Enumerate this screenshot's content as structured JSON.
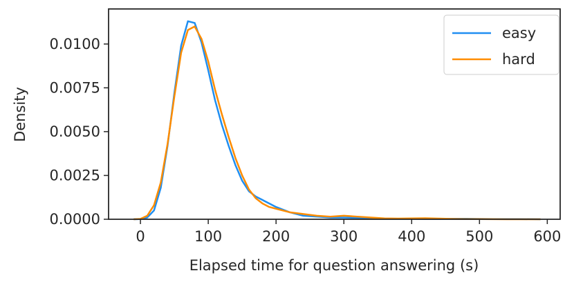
{
  "chart_data": {
    "type": "line",
    "x_label": "Elapsed time for question answering (s)",
    "y_label": "Density",
    "x": [
      -10,
      0,
      10,
      20,
      30,
      40,
      50,
      60,
      70,
      80,
      90,
      100,
      110,
      120,
      130,
      140,
      150,
      160,
      170,
      180,
      190,
      200,
      220,
      240,
      260,
      280,
      300,
      320,
      340,
      360,
      380,
      400,
      420,
      440,
      460,
      480,
      500,
      520,
      540,
      560,
      580,
      590
    ],
    "series": [
      {
        "name": "easy",
        "color": "#1f8ef1",
        "values": [
          0,
          1e-05,
          0.0001,
          0.0005,
          0.0018,
          0.0042,
          0.0072,
          0.0099,
          0.0113,
          0.0112,
          0.0101,
          0.0085,
          0.0068,
          0.0054,
          0.0042,
          0.0031,
          0.0022,
          0.0016,
          0.0013,
          0.0011,
          0.0009,
          0.0007,
          0.0004,
          0.0002,
          0.00015,
          0.0001,
          0.0001,
          8e-05,
          6e-05,
          4e-05,
          3e-05,
          3e-05,
          2e-05,
          2e-05,
          3e-05,
          3e-05,
          2e-05,
          1e-05,
          1e-05,
          1e-05,
          5e-06,
          0
        ]
      },
      {
        "name": "hard",
        "color": "#ff8c00",
        "values": [
          0,
          2e-05,
          0.0002,
          0.0008,
          0.0021,
          0.0043,
          0.007,
          0.0095,
          0.0108,
          0.011,
          0.0103,
          0.009,
          0.0074,
          0.006,
          0.0047,
          0.0035,
          0.0025,
          0.0017,
          0.0012,
          0.0009,
          0.0007,
          0.0006,
          0.0004,
          0.0003,
          0.0002,
          0.00015,
          0.0002,
          0.00015,
          0.0001,
          5e-05,
          4e-05,
          5e-05,
          6e-05,
          4e-05,
          2e-05,
          1e-05,
          1e-05,
          5e-06,
          0,
          0,
          0,
          0
        ]
      }
    ],
    "xlim": [
      -47,
      619
    ],
    "ylim": [
      0,
      0.012
    ],
    "xticks": [
      0,
      100,
      200,
      300,
      400,
      500,
      600
    ],
    "yticks": [
      {
        "value": 0,
        "label": "0.0000"
      },
      {
        "value": 0.0025,
        "label": "0.0025"
      },
      {
        "value": 0.005,
        "label": "0.0050"
      },
      {
        "value": 0.0075,
        "label": "0.0075"
      },
      {
        "value": 0.01,
        "label": "0.0100"
      }
    ],
    "legend": "upper right"
  }
}
